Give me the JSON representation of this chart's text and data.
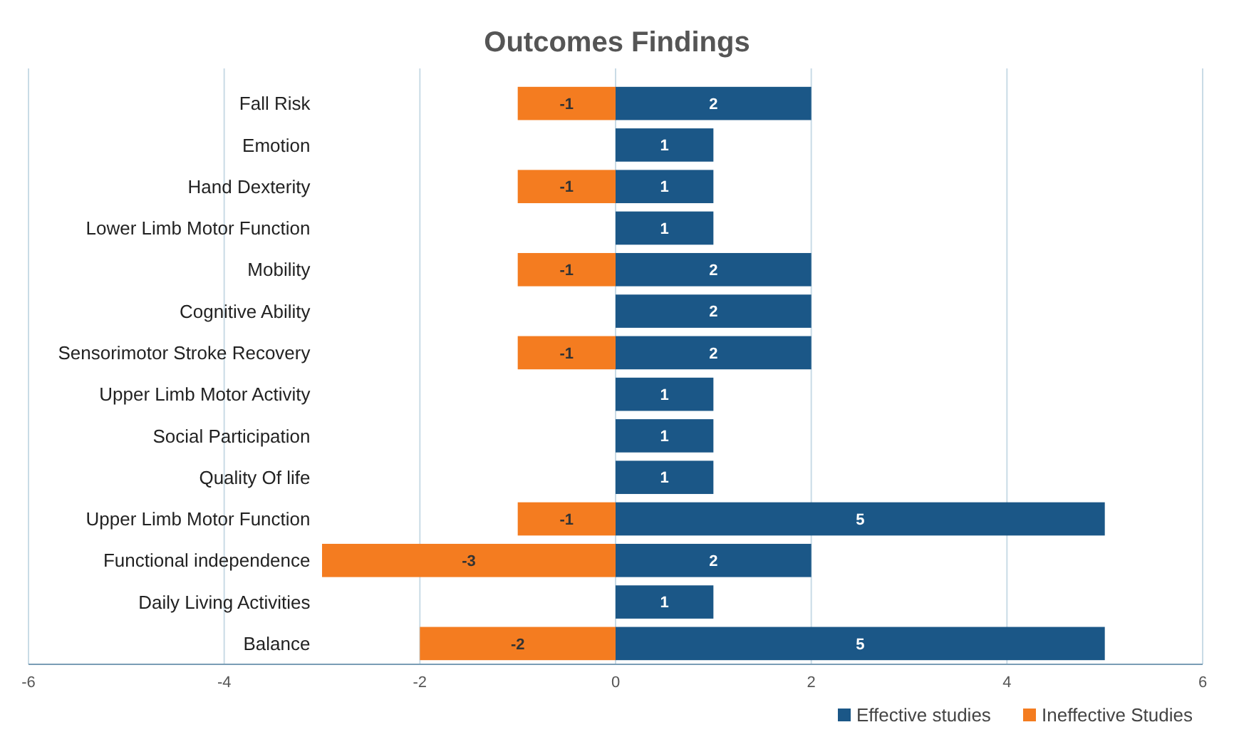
{
  "chart_data": {
    "type": "bar",
    "orientation": "horizontal",
    "stacked": true,
    "title": "Outcomes Findings",
    "categories": [
      "Fall Risk",
      "Emotion",
      "Hand Dexterity",
      "Lower Limb Motor Function",
      "Mobility",
      "Cognitive Ability",
      "Sensorimotor Stroke Recovery",
      "Upper Limb Motor Activity",
      "Social Participation",
      "Quality Of life",
      "Upper Limb Motor Function",
      "Functional independence",
      "Daily Living Activities",
      "Balance"
    ],
    "series": [
      {
        "name": "Effective studies",
        "color": "#1b5787",
        "values": [
          2,
          1,
          1,
          1,
          2,
          2,
          2,
          1,
          1,
          1,
          5,
          2,
          1,
          5
        ]
      },
      {
        "name": "Ineffective Studies",
        "color": "#f47c20",
        "values": [
          -1,
          null,
          -1,
          null,
          -1,
          null,
          -1,
          null,
          null,
          null,
          -1,
          -3,
          null,
          -2
        ]
      }
    ],
    "xlim": [
      -6,
      6
    ],
    "xticks": [
      -6,
      -4,
      -2,
      0,
      2,
      4,
      6
    ],
    "grid": "x",
    "legend": "bottom right",
    "data_labels": true
  }
}
